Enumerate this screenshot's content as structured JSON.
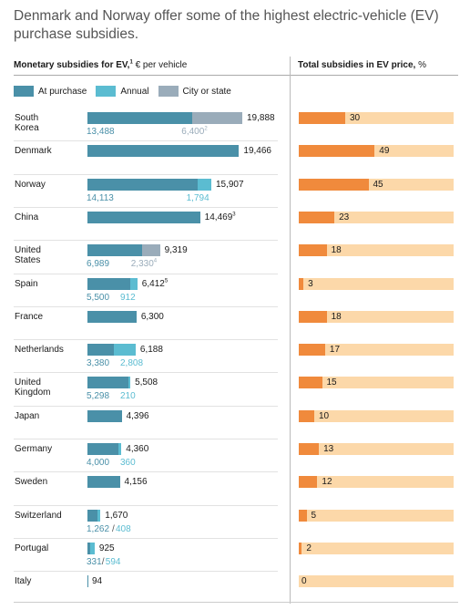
{
  "title": "Denmark and Norway offer some of the highest electric-vehicle (EV) purchase subsidies.",
  "left_header": {
    "bold": "Monetary subsidies for EV,",
    "sup": "1",
    "rest": " € per vehicle"
  },
  "right_header": {
    "bold": "Total subsidies in EV price,",
    "rest": " %"
  },
  "legend": [
    {
      "label": "At purchase",
      "color": "#4a90a8"
    },
    {
      "label": "Annual",
      "color": "#5bbcd1"
    },
    {
      "label": "City or state",
      "color": "#9aacba"
    }
  ],
  "colors": {
    "purchase": "#4a90a8",
    "annual": "#5bbcd1",
    "city": "#9aacba",
    "purchase_text": "#4a90a8",
    "annual_text": "#5bbcd1",
    "city_text": "#9aacba",
    "pct_fill": "#f08a3c",
    "pct_track": "#fcd8a9"
  },
  "chart_data": {
    "type": "bar",
    "title": "Denmark and Norway offer some of the highest electric-vehicle (EV) purchase subsidies.",
    "series": [
      {
        "name": "At purchase"
      },
      {
        "name": "Annual"
      },
      {
        "name": "City or state"
      }
    ],
    "rows": [
      {
        "country": "South\nKorea",
        "total": "19,888",
        "total_num": 19888,
        "purchase": 13488,
        "annual": 0,
        "city": 6400,
        "labels": [
          {
            "text": "13,488",
            "kind": "purchase"
          },
          {
            "text": "6,400",
            "kind": "city",
            "sup": "2"
          }
        ],
        "pct": 30
      },
      {
        "country": "Denmark",
        "total": "19,466",
        "total_num": 19466,
        "purchase": 19466,
        "annual": 0,
        "city": 0,
        "labels": [],
        "pct": 49
      },
      {
        "country": "Norway",
        "total": "15,907",
        "total_num": 15907,
        "purchase": 14113,
        "annual": 1794,
        "city": 0,
        "labels": [
          {
            "text": "14,113",
            "kind": "purchase"
          },
          {
            "text": "1,794",
            "kind": "annual"
          }
        ],
        "pct": 45
      },
      {
        "country": "China",
        "total": "14,469",
        "total_sup": "3",
        "total_num": 14469,
        "purchase": 14469,
        "annual": 0,
        "city": 0,
        "labels": [],
        "pct": 23
      },
      {
        "country": "United\nStates",
        "total": "9,319",
        "total_num": 9319,
        "purchase": 6989,
        "annual": 0,
        "city": 2330,
        "labels": [
          {
            "text": "6,989",
            "kind": "purchase"
          },
          {
            "text": "2,330",
            "kind": "city",
            "sup": "4"
          }
        ],
        "pct": 18
      },
      {
        "country": "Spain",
        "total": "6,412",
        "total_sup": "5",
        "total_num": 6412,
        "purchase": 5500,
        "annual": 912,
        "city": 0,
        "labels": [
          {
            "text": "5,500",
            "kind": "purchase"
          },
          {
            "text": "912",
            "kind": "annual"
          }
        ],
        "pct": 3
      },
      {
        "country": "France",
        "total": "6,300",
        "total_num": 6300,
        "purchase": 6300,
        "annual": 0,
        "city": 0,
        "labels": [],
        "pct": 18
      },
      {
        "country": "Netherlands",
        "total": "6,188",
        "total_num": 6188,
        "purchase": 3380,
        "annual": 2808,
        "city": 0,
        "labels": [
          {
            "text": "3,380",
            "kind": "purchase"
          },
          {
            "text": "2,808",
            "kind": "annual"
          }
        ],
        "pct": 17
      },
      {
        "country": "United\nKingdom",
        "total": "5,508",
        "total_num": 5508,
        "purchase": 5298,
        "annual": 210,
        "city": 0,
        "labels": [
          {
            "text": "5,298",
            "kind": "purchase"
          },
          {
            "text": "210",
            "kind": "annual"
          }
        ],
        "pct": 15
      },
      {
        "country": "Japan",
        "total": "4,396",
        "total_num": 4396,
        "purchase": 4396,
        "annual": 0,
        "city": 0,
        "labels": [],
        "pct": 10
      },
      {
        "country": "Germany",
        "total": "4,360",
        "total_num": 4360,
        "purchase": 4000,
        "annual": 360,
        "city": 0,
        "labels": [
          {
            "text": "4,000",
            "kind": "purchase"
          },
          {
            "text": "360",
            "kind": "annual"
          }
        ],
        "pct": 13
      },
      {
        "country": "Sweden",
        "total": "4,156",
        "total_num": 4156,
        "purchase": 4156,
        "annual": 0,
        "city": 0,
        "labels": [],
        "pct": 12
      },
      {
        "country": "Switzerland",
        "total": "1,670",
        "total_num": 1670,
        "purchase": 1262,
        "annual": 408,
        "city": 0,
        "labels": [
          {
            "text": "1,262",
            "kind": "purchase",
            "joined": true
          },
          {
            "text": "408",
            "kind": "annual"
          }
        ],
        "pct": 5
      },
      {
        "country": "Portugal",
        "total": "925",
        "total_num": 925,
        "purchase": 331,
        "annual": 594,
        "city": 0,
        "labels": [
          {
            "text": "331",
            "kind": "purchase",
            "joined": true
          },
          {
            "text": "594",
            "kind": "annual"
          }
        ],
        "pct": 2
      },
      {
        "country": "Italy",
        "total": "94",
        "total_num": 94,
        "purchase": 94,
        "annual": 0,
        "city": 0,
        "labels": [],
        "pct": 0
      }
    ],
    "right_axis_max_pct": 100
  }
}
